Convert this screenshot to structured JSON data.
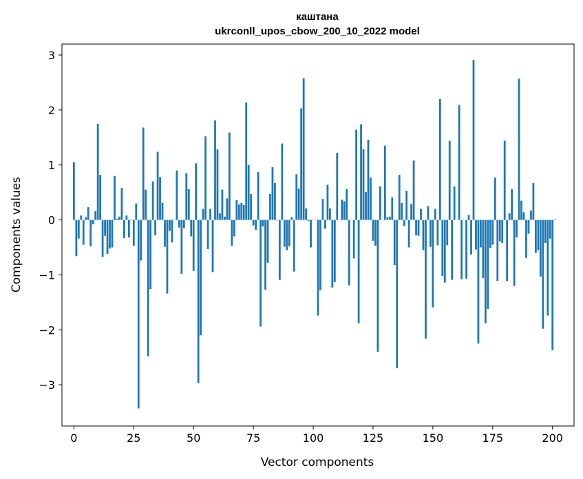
{
  "chart_data": {
    "type": "bar",
    "title": "каштана",
    "subtitle": "ukrconll_upos_cbow_200_10_2022 model",
    "xlabel": "Vector components",
    "ylabel": "Components values",
    "xlim": [
      -5,
      209
    ],
    "ylim": [
      -3.75,
      3.2
    ],
    "xticks": [
      0,
      25,
      50,
      75,
      100,
      125,
      150,
      175,
      200
    ],
    "yticks": [
      -3,
      -2,
      -1,
      0,
      1,
      2,
      3
    ],
    "ytick_labels": [
      "−3",
      "−2",
      "−1",
      "0",
      "1",
      "2",
      "3"
    ],
    "bar_color": "#1f77b4",
    "grid": false,
    "legend": "none",
    "values": [
      1.05,
      -0.66,
      -0.34,
      0.08,
      -0.45,
      0.05,
      0.23,
      -0.48,
      -0.08,
      0.16,
      1.75,
      0.82,
      -0.67,
      -0.29,
      -0.62,
      -0.52,
      -0.5,
      0.8,
      0.02,
      0.06,
      0.58,
      -0.33,
      0.08,
      -0.32,
      -0.01,
      -0.47,
      0.3,
      -3.43,
      -0.74,
      1.68,
      0.55,
      -2.48,
      -1.26,
      0.7,
      -0.28,
      1.24,
      0.78,
      0.31,
      -0.49,
      -1.34,
      -0.2,
      -0.41,
      0.0,
      0.9,
      -0.14,
      -0.98,
      -0.15,
      0.85,
      0.56,
      -0.3,
      -0.93,
      1.03,
      -2.97,
      -2.1,
      0.2,
      1.52,
      -0.53,
      0.2,
      -0.95,
      1.81,
      1.28,
      0.12,
      0.55,
      0.06,
      0.39,
      1.59,
      -0.47,
      -0.3,
      0.36,
      0.28,
      0.31,
      0.27,
      2.14,
      1.0,
      0.47,
      -0.1,
      -0.18,
      0.87,
      -1.94,
      -0.12,
      -1.27,
      -0.78,
      0.47,
      0.96,
      0.67,
      -0.01,
      -1.09,
      1.39,
      -0.49,
      -0.55,
      -0.48,
      0.05,
      -0.94,
      0.83,
      0.57,
      2.03,
      2.58,
      0.21,
      -0.02,
      -0.5,
      0.0,
      0.0,
      -1.74,
      -1.28,
      0.38,
      -0.16,
      0.64,
      0.21,
      -1.23,
      -1.13,
      1.22,
      0.0,
      0.37,
      0.34,
      0.56,
      -1.19,
      0.0,
      -0.7,
      1.64,
      -1.88,
      1.74,
      1.29,
      0.51,
      1.46,
      0.77,
      -0.38,
      -0.47,
      -2.4,
      0.61,
      0.0,
      1.35,
      0.05,
      0.06,
      0.41,
      -0.82,
      -2.7,
      0.82,
      0.31,
      -0.11,
      0.53,
      -0.5,
      0.29,
      1.08,
      -0.28,
      -0.29,
      0.2,
      -0.55,
      -2.16,
      0.25,
      -0.49,
      -1.59,
      0.2,
      -0.46,
      2.2,
      -1.02,
      -1.14,
      -0.46,
      1.44,
      -1.09,
      0.61,
      0.0,
      2.09,
      -1.08,
      0.0,
      -1.07,
      0.09,
      -0.63,
      2.91,
      -0.54,
      -2.25,
      -0.5,
      -1.06,
      -1.88,
      -1.62,
      -0.51,
      -0.45,
      0.77,
      -1.11,
      -0.39,
      -0.42,
      1.44,
      -1.11,
      0.12,
      0.56,
      -1.2,
      -0.32,
      2.57,
      0.35,
      0.14,
      -0.69,
      -0.25,
      0.17,
      0.67,
      -0.6,
      -0.55,
      -1.03,
      -1.98,
      -0.42,
      -1.74,
      -0.34,
      -2.37,
      0.01
    ]
  }
}
